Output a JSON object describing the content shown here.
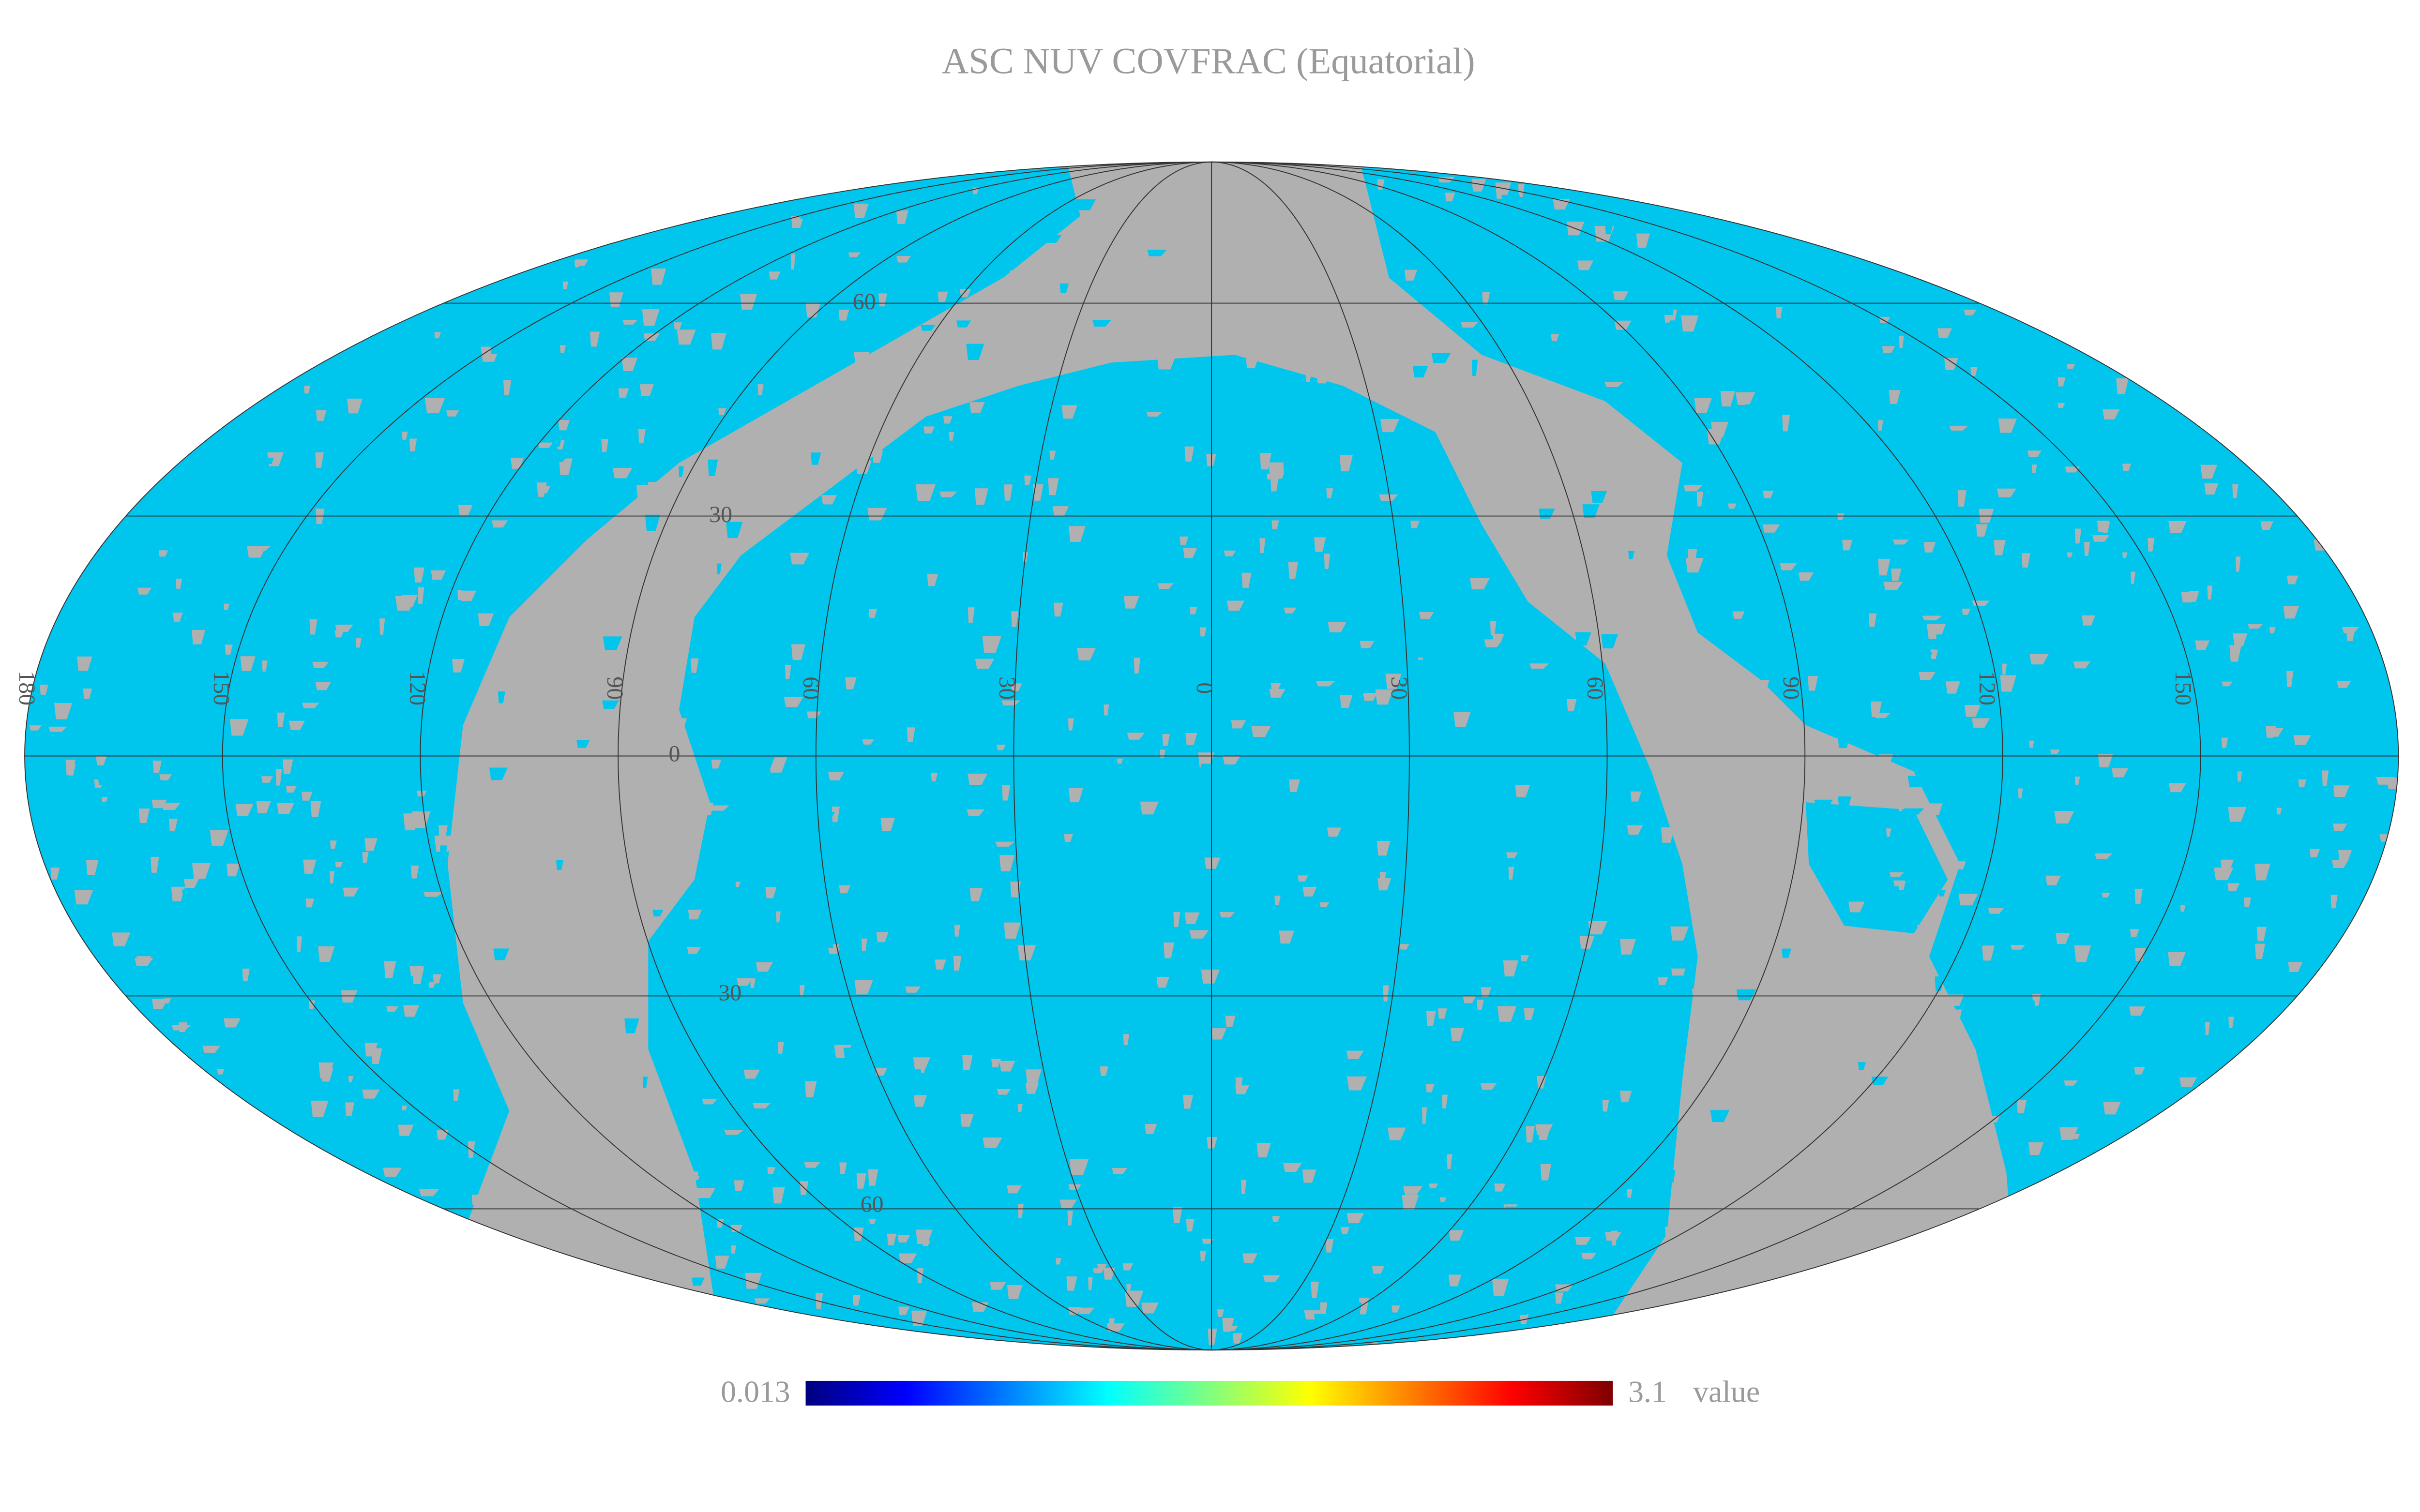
{
  "title": "ASC NUV COVFRAC (Equatorial)",
  "colorbar": {
    "min": 0.013,
    "max": 3.1,
    "unit": "value"
  },
  "graticule": {
    "longitude_labels": [
      180,
      150,
      120,
      90,
      60,
      30,
      0,
      30,
      60,
      90,
      120,
      150
    ],
    "latitude_labels": [
      60,
      30,
      0,
      30,
      60
    ]
  }
}
